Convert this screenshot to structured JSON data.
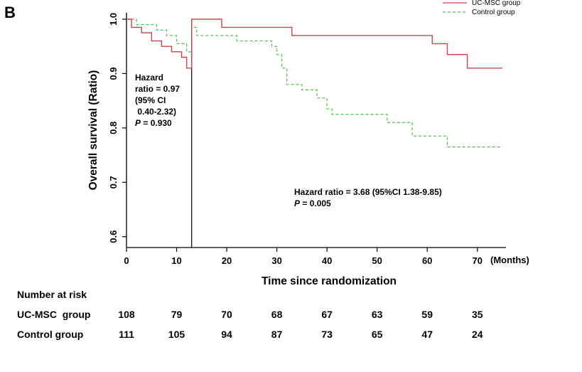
{
  "panel_label": "B",
  "chart_data": {
    "type": "line",
    "title": "",
    "xlabel": "Time since randomization",
    "x_unit_label": "(Months)",
    "ylabel": "Overall survival (Ratio)",
    "xlim": [
      0,
      75
    ],
    "ylim": [
      0.58,
      1.0
    ],
    "x_ticks": [
      "0",
      "10",
      "20",
      "30",
      "40",
      "50",
      "60",
      "70"
    ],
    "y_ticks": [
      "0.6",
      "0.7",
      "0.8",
      "0.9",
      "1.0"
    ],
    "grid": false,
    "legend_position": "top-right",
    "colors": {
      "uc_msc": "#d1404a",
      "control": "#46c046",
      "reference_line": "#000000"
    },
    "reference_line_x": 13,
    "series": [
      {
        "name": "UC-MSC group",
        "key": "uc_msc",
        "style": "solid",
        "steps": [
          [
            0,
            1.0
          ],
          [
            1,
            0.985
          ],
          [
            3,
            0.975
          ],
          [
            5,
            0.96
          ],
          [
            7,
            0.95
          ],
          [
            9,
            0.94
          ],
          [
            11,
            0.93
          ],
          [
            12,
            0.91
          ],
          [
            13,
            1.0
          ],
          [
            19,
            0.985
          ],
          [
            33,
            0.97
          ],
          [
            61,
            0.955
          ],
          [
            64,
            0.935
          ],
          [
            68,
            0.91
          ],
          [
            75,
            0.91
          ]
        ]
      },
      {
        "name": "Control group",
        "key": "control",
        "style": "dashed",
        "steps": [
          [
            0,
            1.0
          ],
          [
            2,
            0.99
          ],
          [
            6,
            0.98
          ],
          [
            8,
            0.97
          ],
          [
            10,
            0.955
          ],
          [
            12,
            0.94
          ],
          [
            13,
            0.985
          ],
          [
            14,
            0.97
          ],
          [
            22,
            0.96
          ],
          [
            29,
            0.95
          ],
          [
            30,
            0.935
          ],
          [
            31,
            0.91
          ],
          [
            32,
            0.88
          ],
          [
            35,
            0.87
          ],
          [
            38,
            0.855
          ],
          [
            40,
            0.835
          ],
          [
            41,
            0.825
          ],
          [
            52,
            0.81
          ],
          [
            57,
            0.785
          ],
          [
            64,
            0.765
          ],
          [
            75,
            0.765
          ]
        ]
      }
    ],
    "annotations": {
      "left": [
        "Hazard",
        "ratio = 0.97",
        "(95% CI",
        " 0.40-2.32)",
        "P = 0.930"
      ],
      "right": [
        "Hazard ratio = 3.68 (95%CI 1.38-9.85)",
        "P = 0.005"
      ]
    }
  },
  "risk_table": {
    "heading": "Number at risk",
    "rows": [
      {
        "label": "UC-MSC  group",
        "values": [
          "108",
          "79",
          "70",
          "68",
          "67",
          "63",
          "59",
          "35"
        ]
      },
      {
        "label": "Control group",
        "values": [
          "111",
          "105",
          "94",
          "87",
          "73",
          "65",
          "47",
          "24"
        ]
      }
    ]
  }
}
